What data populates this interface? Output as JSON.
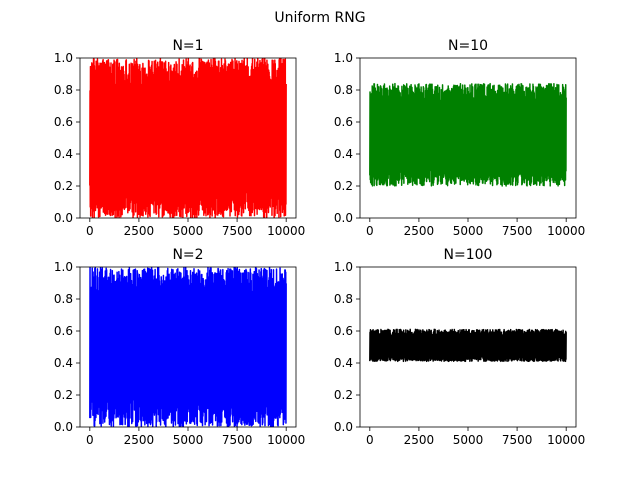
{
  "figure": {
    "title": "Uniform RNG"
  },
  "chart_data": [
    {
      "type": "line",
      "title": "N=1",
      "xlabel": "",
      "ylabel": "",
      "xlim": [
        -500,
        10500
      ],
      "ylim": [
        0.0,
        1.0
      ],
      "xticks": [
        0,
        2500,
        5000,
        7500,
        10000
      ],
      "yticks": [
        "0.0",
        "0.2",
        "0.4",
        "0.6",
        "0.8",
        "1.0"
      ],
      "series": [
        {
          "color": "#ff0000",
          "n_points": 10000,
          "mean": 0.5,
          "min": 0.0,
          "max": 1.0
        }
      ]
    },
    {
      "type": "line",
      "title": "N=10",
      "xlabel": "",
      "ylabel": "",
      "xlim": [
        -500,
        10500
      ],
      "ylim": [
        0.0,
        1.0
      ],
      "xticks": [
        0,
        2500,
        5000,
        7500,
        10000
      ],
      "yticks": [
        "0.0",
        "0.2",
        "0.4",
        "0.6",
        "0.8",
        "1.0"
      ],
      "series": [
        {
          "color": "#008000",
          "n_points": 10000,
          "mean": 0.5,
          "min": 0.2,
          "max": 0.84
        }
      ]
    },
    {
      "type": "line",
      "title": "N=2",
      "xlabel": "",
      "ylabel": "",
      "xlim": [
        -500,
        10500
      ],
      "ylim": [
        0.0,
        1.0
      ],
      "xticks": [
        0,
        2500,
        5000,
        7500,
        10000
      ],
      "yticks": [
        "0.0",
        "0.2",
        "0.4",
        "0.6",
        "0.8",
        "1.0"
      ],
      "series": [
        {
          "color": "#0000ff",
          "n_points": 10000,
          "mean": 0.5,
          "min": 0.0,
          "max": 1.0
        }
      ]
    },
    {
      "type": "line",
      "title": "N=100",
      "xlabel": "",
      "ylabel": "",
      "xlim": [
        -500,
        10500
      ],
      "ylim": [
        0.0,
        1.0
      ],
      "xticks": [
        0,
        2500,
        5000,
        7500,
        10000
      ],
      "yticks": [
        "0.0",
        "0.2",
        "0.4",
        "0.6",
        "0.8",
        "1.0"
      ],
      "series": [
        {
          "color": "#000000",
          "n_points": 10000,
          "mean": 0.5,
          "min": 0.41,
          "max": 0.61
        }
      ]
    }
  ]
}
